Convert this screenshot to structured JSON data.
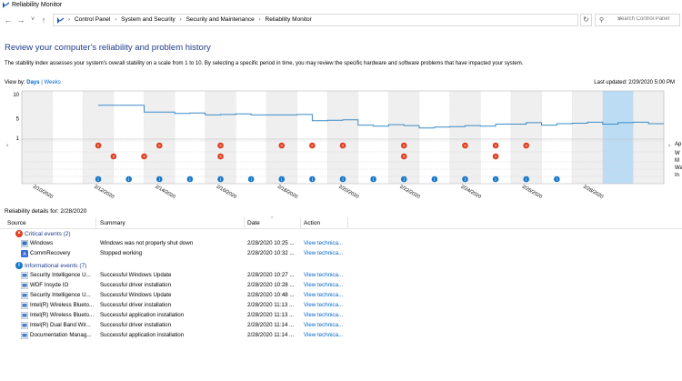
{
  "window": {
    "title": "Reliability Monitor"
  },
  "address_bar": {
    "back": "←",
    "forward": "→",
    "recent": "˅",
    "up": "↑",
    "crumbs": [
      "Control Panel",
      "System and Security",
      "Security and Maintenance",
      "Reliability Monitor"
    ],
    "dropdown": "˅",
    "refresh": "↻",
    "search_placeholder": "Search Control Panel"
  },
  "page": {
    "heading": "Review your computer's reliability and problem history",
    "description": "The stability index assesses your system's overall stability on a scale from 1 to 10. By selecting a specific period in time, you may review the specific hardware and software problems that have impacted your system.",
    "view_by_label": "View by:",
    "view_days": "Days",
    "view_sep": "|",
    "view_weeks": "Weeks",
    "last_updated": "Last updated: 2/29/2020 5:00 PM"
  },
  "chart_data": {
    "type": "line",
    "y_ticks": [
      "10",
      "5",
      "1"
    ],
    "ylim": [
      1,
      10
    ],
    "x_labels": [
      "2/10/2020",
      "2/12/2020",
      "2/14/2020",
      "2/16/2020",
      "2/18/2020",
      "2/20/2020",
      "2/22/2020",
      "2/24/2020",
      "2/26/2020",
      "2/28/2020"
    ],
    "series": [
      {
        "values": [
          null,
          null,
          null,
          null,
          null,
          7.8,
          7.8,
          7.8,
          6.4,
          6.4,
          6.1,
          6.2,
          5.8,
          5.9,
          6.0,
          5.8,
          5.8,
          5.8,
          5.9,
          4.6,
          4.7,
          4.8,
          3.7,
          3.5,
          3.8,
          3.6,
          3.1,
          3.3,
          3.4,
          3.6,
          3.5,
          3.9,
          3.9,
          4.2,
          3.7,
          4.0,
          4.1,
          4.3,
          3.9,
          4.2,
          4.3,
          4.0
        ]
      }
    ],
    "selected_day": "2/28/2020",
    "event_rows": [
      "Application failures",
      "Windows failures",
      "Miscellaneous failures",
      "Warnings",
      "Information"
    ],
    "event_row_labels_visible": [
      "Ap",
      "W",
      "M",
      "Wa",
      "In"
    ],
    "app_failure_days": [
      4,
      8,
      12,
      16,
      18,
      20,
      24,
      28,
      30,
      32
    ],
    "windows_failure_days": [
      5,
      7,
      12,
      24,
      30
    ],
    "misc_failure_days": [],
    "warning_days": [],
    "info_days": [
      4,
      6,
      8,
      10,
      12,
      14,
      16,
      18,
      20,
      22,
      24,
      26,
      28,
      30,
      32,
      34
    ],
    "day_columns": 21
  },
  "details": {
    "label": "Reliability details for: 2/28/2020",
    "columns": {
      "source": "Source",
      "summary": "Summary",
      "date": "Date",
      "action": "Action"
    },
    "critical": {
      "title": "Critical events (2)",
      "rows": [
        {
          "source": "Windows",
          "summary": "Windows was not properly shut down",
          "date": "2/28/2020 10:25 ...",
          "action": "View technica..."
        },
        {
          "source": "CommRecovery",
          "summary": "Stopped working",
          "date": "2/28/2020 10:32 ...",
          "action": "View technica..."
        }
      ]
    },
    "informational": {
      "title": "Informational events (7)",
      "rows": [
        {
          "source": "Security Intelligence U...",
          "summary": "Successful Windows Update",
          "date": "2/28/2020 10:27 ...",
          "action": "View technica..."
        },
        {
          "source": "WDF Insyde IO",
          "summary": "Successful driver installation",
          "date": "2/28/2020 10:28 ...",
          "action": "View technica..."
        },
        {
          "source": "Security Intelligence U...",
          "summary": "Successful Windows Update",
          "date": "2/28/2020 10:48 ...",
          "action": "View technica..."
        },
        {
          "source": "Intel(R) Wireless Blueto...",
          "summary": "Successful driver installation",
          "date": "2/28/2020 11:13 ...",
          "action": "View technica..."
        },
        {
          "source": "Intel(R) Wireless Blueto...",
          "summary": "Successful application installation",
          "date": "2/28/2020 11:13 ...",
          "action": "View technica..."
        },
        {
          "source": "Intel(R) Dual Band Wir...",
          "summary": "Successful driver installation",
          "date": "2/28/2020 11:14 ...",
          "action": "View technica..."
        },
        {
          "source": "Documentation Manag...",
          "summary": "Successful application installation",
          "date": "2/28/2020 11:14 ...",
          "action": "View technica..."
        }
      ]
    }
  },
  "colors": {
    "heading": "#1e3c8c",
    "link": "#0066cc",
    "line": "#3a8cc8",
    "selected": "#bcdcf4",
    "error": "#e03c1e",
    "info": "#1a78c8"
  }
}
